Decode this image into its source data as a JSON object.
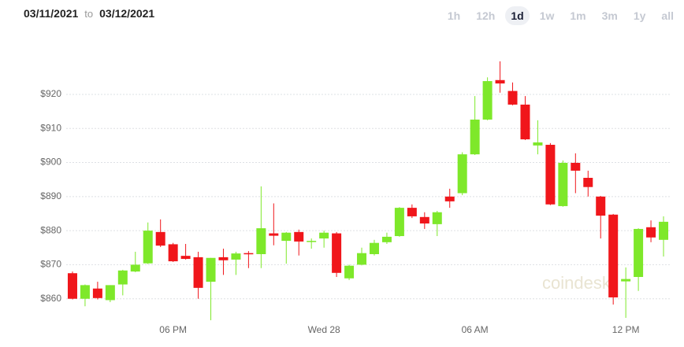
{
  "header": {
    "from": "03/11/2021",
    "sep": "to",
    "to": "03/12/2021",
    "timeframes": [
      "1h",
      "12h",
      "1d",
      "1w",
      "1m",
      "3m",
      "1y",
      "all"
    ],
    "selected": "1d"
  },
  "watermark": "coindesk",
  "chart_data": {
    "type": "candlestick",
    "categories": [
      null,
      null,
      null,
      null,
      null,
      null,
      null,
      null,
      "06 PM",
      null,
      null,
      null,
      null,
      null,
      null,
      null,
      null,
      null,
      null,
      null,
      "Wed 28",
      null,
      null,
      null,
      null,
      null,
      null,
      null,
      null,
      null,
      null,
      null,
      "06 AM",
      null,
      null,
      null,
      null,
      null,
      null,
      null,
      null,
      null,
      null,
      null,
      "12 PM",
      null,
      null,
      null
    ],
    "open": [
      867.5,
      860,
      863,
      859.6,
      864.2,
      868,
      870.4,
      879.6,
      876,
      872.6,
      872.2,
      865,
      872.2,
      871.5,
      873.4,
      873.1,
      879.2,
      877,
      879.6,
      876.8,
      877.7,
      879.2,
      866,
      870,
      873.1,
      876.6,
      878.4,
      886.7,
      884,
      881.9,
      890,
      891,
      902.4,
      912.6,
      924.2,
      921,
      917,
      905,
      905.2,
      887.2,
      899.9,
      895.5,
      890,
      884.7,
      865.1,
      866.4,
      881,
      877.3
    ],
    "high": [
      868,
      864.2,
      865,
      864,
      868.5,
      873.8,
      882.4,
      883.3,
      876.4,
      876.1,
      873.8,
      872,
      874.7,
      873.8,
      874,
      893,
      888,
      879.6,
      880.3,
      877.7,
      880,
      879.6,
      870,
      875,
      877.3,
      879.4,
      886.9,
      887.7,
      885.4,
      885.8,
      892.3,
      903,
      919.5,
      925,
      929.7,
      923.5,
      919.5,
      912.4,
      905.7,
      900.6,
      902.7,
      897.6,
      890.2,
      884.9,
      869.2,
      880.7,
      883,
      884.2
    ],
    "low": [
      859.8,
      857.8,
      859.8,
      859,
      861,
      867.8,
      870.2,
      875.2,
      870.8,
      871.5,
      860,
      853.7,
      867,
      867,
      869,
      869,
      875.7,
      870.3,
      872.7,
      874.7,
      875,
      866.4,
      865.5,
      869.8,
      872.7,
      876.1,
      878.2,
      883.7,
      880.5,
      878.4,
      886.7,
      890.4,
      902.2,
      912.4,
      920.5,
      916.8,
      906.6,
      902.4,
      887.5,
      887,
      891,
      890,
      877.7,
      858.3,
      854.4,
      862.3,
      876.6,
      872.4
    ],
    "close": [
      860,
      864,
      860.2,
      864,
      868.3,
      870,
      880,
      875.6,
      871,
      871.7,
      863.2,
      872,
      871.3,
      873.3,
      873.1,
      880.7,
      878.5,
      879.4,
      876.8,
      877,
      879.4,
      867.6,
      869.7,
      873.4,
      876.4,
      878.2,
      886.7,
      884.2,
      882.1,
      885.4,
      888.6,
      902.4,
      912.6,
      923.9,
      923.2,
      917,
      906.8,
      905.9,
      887.7,
      899.9,
      897.6,
      892.8,
      884.4,
      860.4,
      865.8,
      880.5,
      878,
      882.6
    ],
    "up_color": "#7ee82a",
    "down_color": "#f0161b",
    "ylim": [
      853,
      932
    ],
    "yticks": [
      {
        "value": 860,
        "label": "$860"
      },
      {
        "value": 870,
        "label": "$870"
      },
      {
        "value": 880,
        "label": "$880"
      },
      {
        "value": 890,
        "label": "$890"
      },
      {
        "value": 900,
        "label": "$900"
      },
      {
        "value": 910,
        "label": "$910"
      },
      {
        "value": 920,
        "label": "$920"
      }
    ],
    "grid": true
  }
}
